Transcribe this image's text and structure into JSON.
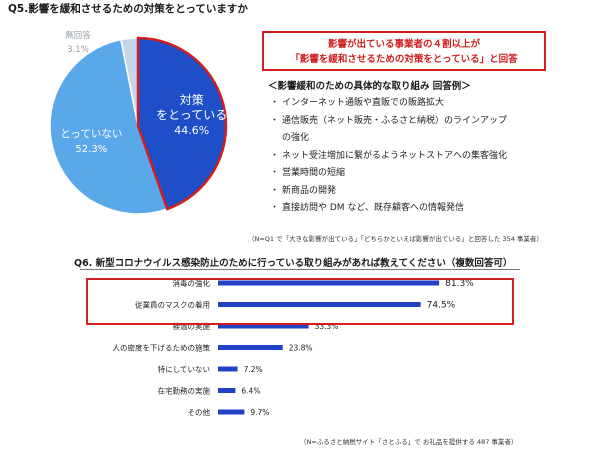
{
  "q5": {
    "title": "Q5.影響を緩和させるための対策をとっていますか",
    "highlight_line1": "影響が出ている事業者の４割以上が",
    "highlight_line2": "「影響を緩和させるための対策をとっている」と回答",
    "measures_heading": "＜影響緩和のための具体的な取り組み 回答例＞",
    "measures": [
      "インターネット通販や直販での販路拡大",
      "通信販売（ネット販売・ふるさと納税）のラインアップ",
      "の強化",
      "ネット受注増加に繋がるようネットストアへの集客強化",
      "営業時間の短縮",
      "新商品の開発",
      "直接訪問や DM など、既存顧客への情報発信"
    ],
    "bullet": "・",
    "note": "（N=Q1 で「大きな影響が出ている」「どちらかといえば影響が出ている」と回答した 354 事業者）"
  },
  "q6": {
    "title": "Q6. 新型コロナウイルス感染防止のために行っている取り組みがあれば教えてください（複数回答可）",
    "note": "（N=ふるさと納税サイト「さとふる」で お礼品を提供する 487 事業者）"
  },
  "colors": {
    "pie_taking": "#1f4fc8",
    "pie_not_taking": "#5aa8ea",
    "pie_no_answer": "#c7d6ea",
    "bar": "#2142c4",
    "highlight": "#d01f1f"
  },
  "chart_data": [
    {
      "type": "pie",
      "title": "Q5.影響を緩和させるための対策をとっていますか",
      "slices": [
        {
          "label": "対策をとっている",
          "value": 44.6,
          "value_label": "44.6%"
        },
        {
          "label": "とっていない",
          "value": 52.3,
          "value_label": "52.3%"
        },
        {
          "label": "無回答",
          "value": 3.1,
          "value_label": "3.1%"
        }
      ]
    },
    {
      "type": "bar",
      "orientation": "horizontal",
      "title": "Q6. 新型コロナウイルス感染防止のために行っている取り組みがあれば教えてください（複数回答可）",
      "categories": [
        "消毒の強化",
        "従業員のマスクの着用",
        "検温の実施",
        "人の密度を下げるための施策",
        "特にしていない",
        "在宅勤務の実施",
        "その他"
      ],
      "values": [
        81.3,
        74.5,
        33.3,
        23.8,
        7.2,
        6.4,
        9.7
      ],
      "value_labels": [
        "81.3%",
        "74.5%",
        "33.3%",
        "23.8%",
        "7.2%",
        "6.4%",
        "9.7%"
      ],
      "xlim": [
        0,
        100
      ],
      "highlighted_categories": [
        "消毒の強化",
        "従業員のマスクの着用"
      ]
    }
  ]
}
